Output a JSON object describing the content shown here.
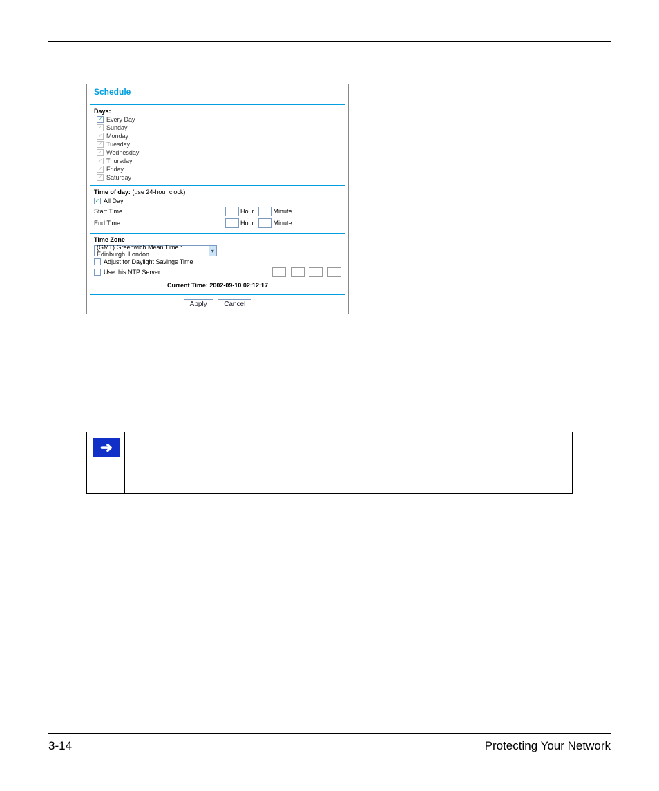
{
  "panel": {
    "title": "Schedule",
    "days_section": {
      "label": "Days:",
      "every_day": {
        "label": "Every Day",
        "checked": true,
        "enabled": true
      },
      "items": [
        {
          "label": "Sunday"
        },
        {
          "label": "Monday"
        },
        {
          "label": "Tuesday"
        },
        {
          "label": "Wednesday"
        },
        {
          "label": "Thursday"
        },
        {
          "label": "Friday"
        },
        {
          "label": "Saturday"
        }
      ]
    },
    "timeofday": {
      "label": "Time of day:",
      "hint": "(use 24-hour clock)",
      "all_day": {
        "label": "All Day",
        "checked": true
      },
      "start_label": "Start Time",
      "end_label": "End Time",
      "hour_unit": "Hour",
      "minute_unit": "Minute"
    },
    "timezone": {
      "label": "Time Zone",
      "selected": "(GMT) Greenwich Mean Time : Edinburgh, London",
      "dst": {
        "label": "Adjust for Daylight Savings Time",
        "checked": false
      },
      "ntp": {
        "label": "Use this NTP Server",
        "checked": false
      }
    },
    "current_time": {
      "label": "Current Time:",
      "value": "2002-09-10 02:12:17"
    },
    "buttons": {
      "apply": "Apply",
      "cancel": "Cancel"
    }
  },
  "footer": {
    "page": "3-14",
    "section": "Protecting Your Network"
  },
  "colors": {
    "accent": "#00a0e0",
    "note_icon_bg": "#1030c8",
    "border": "#7a9ac0"
  }
}
